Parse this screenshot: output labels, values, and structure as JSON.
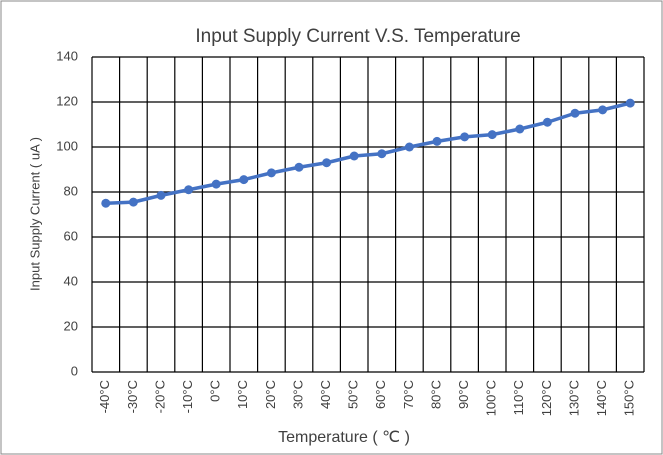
{
  "chart_data": {
    "type": "line",
    "title": "Input Supply Current V.S. Temperature",
    "x_label": "Temperature ( ℃ )",
    "y_label": "Input Supply Current ( uA )",
    "categories": [
      "-40°C",
      "-30°C",
      "-20°C",
      "-10°C",
      "0°C",
      "10°C",
      "20°C",
      "30°C",
      "40°C",
      "50°C",
      "60°C",
      "70°C",
      "80°C",
      "90°C",
      "100°C",
      "110°C",
      "120°C",
      "130°C",
      "140°C",
      "150°C"
    ],
    "series": [
      {
        "name": "Input Supply Current",
        "color": "#4472c4",
        "values": [
          75,
          75.5,
          78.5,
          81,
          83.5,
          85.5,
          88.5,
          91,
          93,
          96,
          97,
          100,
          102.5,
          104.5,
          105.5,
          108,
          111,
          115,
          116.5,
          119.5
        ]
      }
    ],
    "ylim": [
      0,
      140
    ],
    "yticks": [
      0,
      20,
      40,
      60,
      80,
      100,
      120,
      140
    ],
    "grid": true
  }
}
